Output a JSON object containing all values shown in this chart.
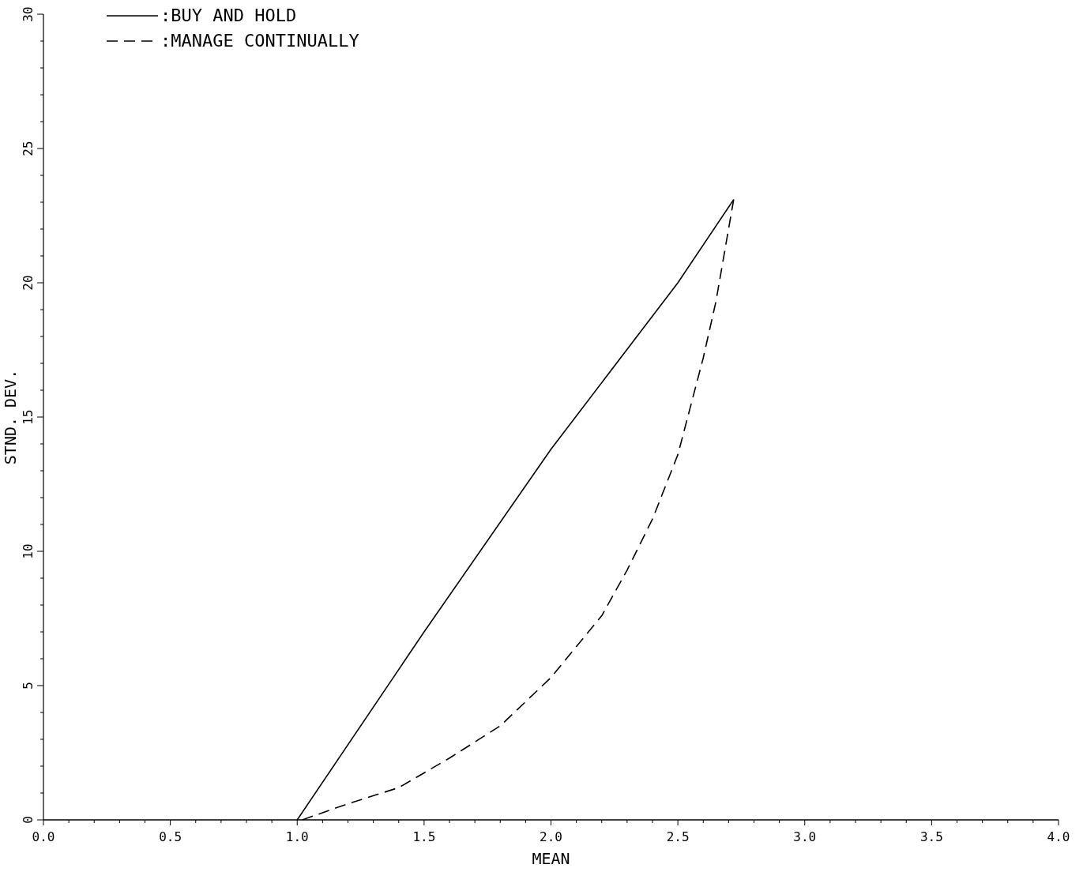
{
  "chart_data": {
    "type": "line",
    "xlabel": "MEAN",
    "ylabel": "STND. DEV.",
    "xlim": [
      0,
      4
    ],
    "ylim": [
      0,
      30
    ],
    "xticks": [
      {
        "value": 0,
        "label": "0.0"
      },
      {
        "value": 0.1,
        "label": null
      },
      {
        "value": 0.2,
        "label": null
      },
      {
        "value": 0.3,
        "label": null
      },
      {
        "value": 0.4,
        "label": null
      },
      {
        "value": 0.5,
        "label": "0.5"
      },
      {
        "value": 0.6,
        "label": null
      },
      {
        "value": 0.7,
        "label": null
      },
      {
        "value": 0.8,
        "label": null
      },
      {
        "value": 0.9,
        "label": null
      },
      {
        "value": 1,
        "label": "1.0"
      },
      {
        "value": 1.1,
        "label": null
      },
      {
        "value": 1.2,
        "label": null
      },
      {
        "value": 1.3,
        "label": null
      },
      {
        "value": 1.4,
        "label": null
      },
      {
        "value": 1.5,
        "label": "1.5"
      },
      {
        "value": 1.6,
        "label": null
      },
      {
        "value": 1.7,
        "label": null
      },
      {
        "value": 1.8,
        "label": null
      },
      {
        "value": 1.9,
        "label": null
      },
      {
        "value": 2,
        "label": "2.0"
      },
      {
        "value": 2.1,
        "label": null
      },
      {
        "value": 2.2,
        "label": null
      },
      {
        "value": 2.3,
        "label": null
      },
      {
        "value": 2.4,
        "label": null
      },
      {
        "value": 2.5,
        "label": "2.5"
      },
      {
        "value": 2.6,
        "label": null
      },
      {
        "value": 2.7,
        "label": null
      },
      {
        "value": 2.8,
        "label": null
      },
      {
        "value": 2.9,
        "label": null
      },
      {
        "value": 3,
        "label": "3.0"
      },
      {
        "value": 3.1,
        "label": null
      },
      {
        "value": 3.2,
        "label": null
      },
      {
        "value": 3.3,
        "label": null
      },
      {
        "value": 3.4,
        "label": null
      },
      {
        "value": 3.5,
        "label": "3.5"
      },
      {
        "value": 3.6,
        "label": null
      },
      {
        "value": 3.7,
        "label": null
      },
      {
        "value": 3.8,
        "label": null
      },
      {
        "value": 3.9,
        "label": null
      },
      {
        "value": 4,
        "label": "4.0"
      }
    ],
    "yticks": [
      0,
      {
        "value": 1,
        "label": null
      },
      {
        "value": 2,
        "label": null
      },
      {
        "value": 3,
        "label": null
      },
      {
        "value": 4,
        "label": null
      },
      5,
      {
        "value": 6,
        "label": null
      },
      {
        "value": 7,
        "label": null
      },
      {
        "value": 8,
        "label": null
      },
      {
        "value": 9,
        "label": null
      },
      10,
      {
        "value": 11,
        "label": null
      },
      {
        "value": 12,
        "label": null
      },
      {
        "value": 13,
        "label": null
      },
      {
        "value": 14,
        "label": null
      },
      15,
      {
        "value": 16,
        "label": null
      },
      {
        "value": 17,
        "label": null
      },
      {
        "value": 18,
        "label": null
      },
      {
        "value": 19,
        "label": null
      },
      20,
      {
        "value": 21,
        "label": null
      },
      {
        "value": 22,
        "label": null
      },
      {
        "value": 23,
        "label": null
      },
      {
        "value": 24,
        "label": null
      },
      25,
      {
        "value": 26,
        "label": null
      },
      {
        "value": 27,
        "label": null
      },
      {
        "value": 28,
        "label": null
      },
      {
        "value": 29,
        "label": null
      },
      30
    ],
    "grid": false,
    "legend": "top left",
    "marker": "none",
    "series": [
      {
        "name": ":BUY AND HOLD",
        "color": "#000000",
        "line_style": "solid",
        "x": [
          1.0,
          1.5,
          2.0,
          2.5,
          2.72
        ],
        "values": [
          0,
          7.0,
          13.8,
          20.0,
          23.1
        ]
      },
      {
        "name": ":MANAGE CONTINUALLY",
        "color": "#000000",
        "line_style": "dashed",
        "x": [
          1.02,
          1.2,
          1.4,
          1.6,
          1.8,
          2.0,
          2.2,
          2.3,
          2.4,
          2.5,
          2.6,
          2.65,
          2.72
        ],
        "values": [
          0,
          0.6,
          1.2,
          2.3,
          3.5,
          5.3,
          7.6,
          9.3,
          11.2,
          13.6,
          17.2,
          19.3,
          23.1
        ]
      }
    ]
  }
}
